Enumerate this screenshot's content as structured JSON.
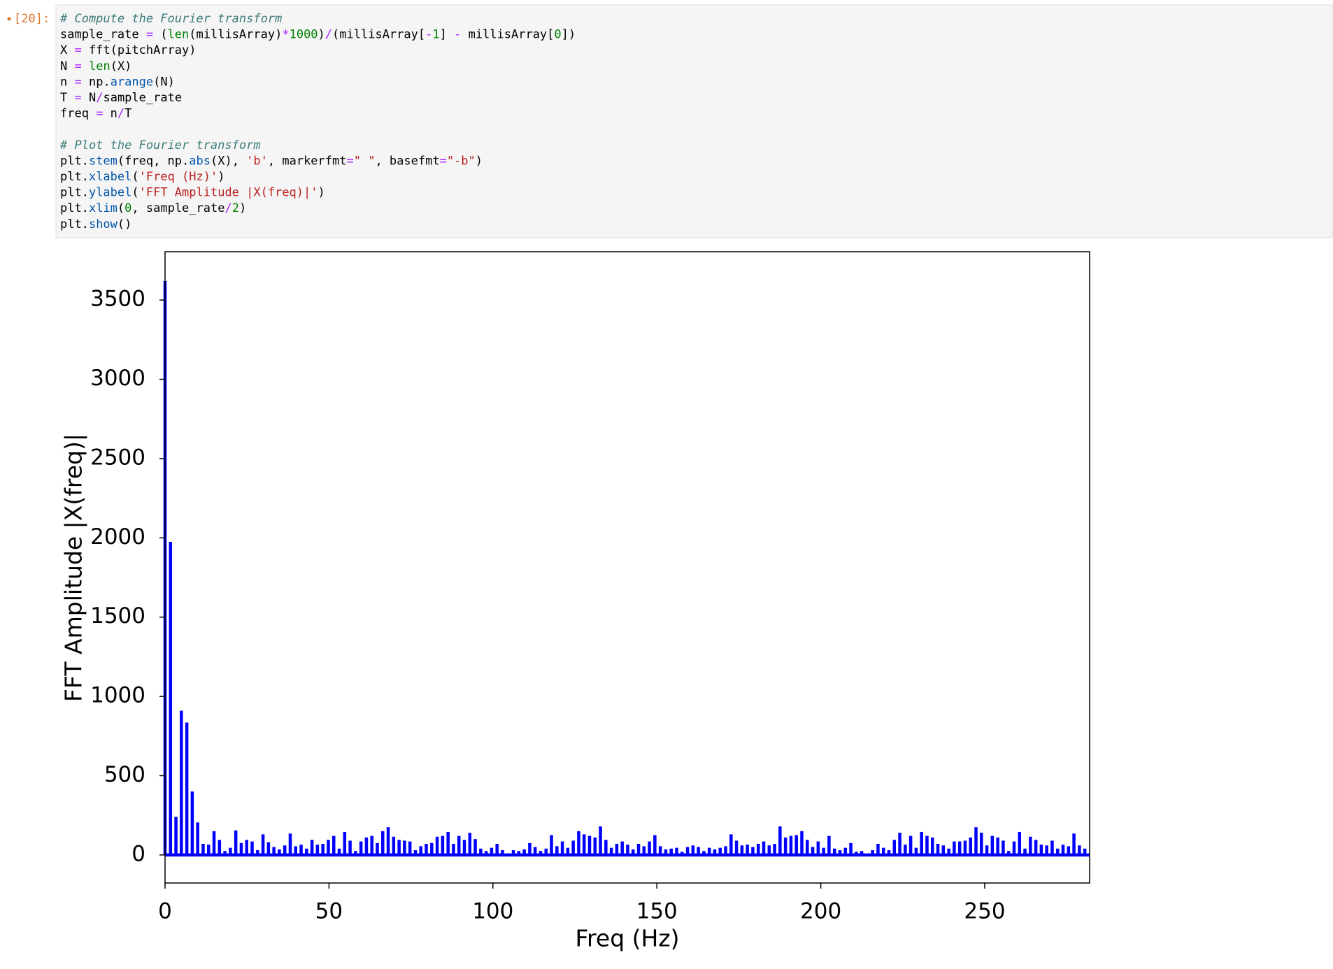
{
  "cell": {
    "prompt": "[20]:",
    "code": [
      [
        [
          "# Compute the Fourier transform",
          "#3d7b7b"
        ]
      ],
      [
        [
          "sample_rate ",
          "#000000"
        ],
        [
          "=",
          "#aa22ff"
        ],
        [
          " (",
          "#000000"
        ],
        [
          "len",
          "#008000"
        ],
        [
          "(millisArray)",
          "#000000"
        ],
        [
          "*",
          "#aa22ff"
        ],
        [
          "1000",
          "#008000"
        ],
        [
          ")",
          "#000000"
        ],
        [
          "/",
          "#aa22ff"
        ],
        [
          "(millisArray[",
          "#000000"
        ],
        [
          "-",
          "#aa22ff"
        ],
        [
          "1",
          "#008000"
        ],
        [
          "] ",
          "#000000"
        ],
        [
          "-",
          "#aa22ff"
        ],
        [
          " millisArray[",
          "#000000"
        ],
        [
          "0",
          "#008000"
        ],
        [
          "])",
          "#000000"
        ]
      ],
      [
        [
          "X ",
          "#000000"
        ],
        [
          "=",
          "#aa22ff"
        ],
        [
          " fft(pitchArray)",
          "#000000"
        ]
      ],
      [
        [
          "N ",
          "#000000"
        ],
        [
          "=",
          "#aa22ff"
        ],
        [
          " ",
          "#000000"
        ],
        [
          "len",
          "#008000"
        ],
        [
          "(X)",
          "#000000"
        ]
      ],
      [
        [
          "n ",
          "#000000"
        ],
        [
          "=",
          "#aa22ff"
        ],
        [
          " np.",
          "#000000"
        ],
        [
          "arange",
          "#0055aa"
        ],
        [
          "(N)",
          "#000000"
        ]
      ],
      [
        [
          "T ",
          "#000000"
        ],
        [
          "=",
          "#aa22ff"
        ],
        [
          " N",
          "#000000"
        ],
        [
          "/",
          "#aa22ff"
        ],
        [
          "sample_rate",
          "#000000"
        ]
      ],
      [
        [
          "freq ",
          "#000000"
        ],
        [
          "=",
          "#aa22ff"
        ],
        [
          " n",
          "#000000"
        ],
        [
          "/",
          "#aa22ff"
        ],
        [
          "T",
          "#000000"
        ]
      ],
      [],
      [
        [
          "# Plot the Fourier transform",
          "#3d7b7b"
        ]
      ],
      [
        [
          "plt.",
          "#000000"
        ],
        [
          "stem",
          "#0055aa"
        ],
        [
          "(freq, np.",
          "#000000"
        ],
        [
          "abs",
          "#0055aa"
        ],
        [
          "(X), ",
          "#000000"
        ],
        [
          "'b'",
          "#ba2121"
        ],
        [
          ", markerfmt",
          "#000000"
        ],
        [
          "=",
          "#aa22ff"
        ],
        [
          "\" \"",
          "#ba2121"
        ],
        [
          ", basefmt",
          "#000000"
        ],
        [
          "=",
          "#aa22ff"
        ],
        [
          "\"-b\"",
          "#ba2121"
        ],
        [
          ")",
          "#000000"
        ]
      ],
      [
        [
          "plt.",
          "#000000"
        ],
        [
          "xlabel",
          "#0055aa"
        ],
        [
          "(",
          "#000000"
        ],
        [
          "'Freq (Hz)'",
          "#ba2121"
        ],
        [
          ")",
          "#000000"
        ]
      ],
      [
        [
          "plt.",
          "#000000"
        ],
        [
          "ylabel",
          "#0055aa"
        ],
        [
          "(",
          "#000000"
        ],
        [
          "'FFT Amplitude |X(freq)|'",
          "#ba2121"
        ],
        [
          ")",
          "#000000"
        ]
      ],
      [
        [
          "plt.",
          "#000000"
        ],
        [
          "xlim",
          "#0055aa"
        ],
        [
          "(",
          "#000000"
        ],
        [
          "0",
          "#008000"
        ],
        [
          ", sample_rate",
          "#000000"
        ],
        [
          "/",
          "#aa22ff"
        ],
        [
          "2",
          "#008000"
        ],
        [
          ")",
          "#000000"
        ]
      ],
      [
        [
          "plt.",
          "#000000"
        ],
        [
          "show",
          "#0055aa"
        ],
        [
          "()",
          "#000000"
        ]
      ]
    ]
  },
  "chart_data": {
    "type": "stem",
    "x_label": "Freq (Hz)",
    "y_label": "FFT Amplitude |X(freq)|",
    "xlim": [
      0,
      282
    ],
    "ylim": [
      -177,
      3805
    ],
    "xticks": [
      0,
      50,
      100,
      150,
      200,
      250
    ],
    "yticks": [
      0,
      500,
      1000,
      1500,
      2000,
      2500,
      3000,
      3500
    ],
    "baseline_color": "#0000ff",
    "x": [
      0,
      1.66,
      3.32,
      4.98,
      6.64,
      8.3,
      9.96,
      11.62,
      13.28,
      14.94,
      16.6,
      18.26,
      19.92,
      21.58,
      23.24,
      24.9,
      26.56,
      28.22,
      29.88,
      31.54,
      33.2,
      34.86,
      36.52,
      38.18,
      39.84,
      41.5,
      43.16,
      44.82,
      46.48,
      48.14,
      49.8,
      51.46,
      53.12,
      54.78,
      56.44,
      58.1,
      59.76,
      61.42,
      63.08,
      64.74,
      66.4,
      68.06,
      69.72,
      71.38,
      73.04,
      74.7,
      76.36,
      78.02,
      79.68,
      81.34,
      83,
      84.66,
      86.32,
      87.98,
      89.64,
      91.3,
      92.96,
      94.62,
      96.28,
      97.94,
      99.6,
      101.26,
      102.92,
      104.58,
      106.24,
      107.9,
      109.56,
      111.22,
      112.88,
      114.54,
      116.2,
      117.86,
      119.52,
      121.18,
      122.84,
      124.5,
      126.16,
      127.82,
      129.48,
      131.14,
      132.8,
      134.46,
      136.12,
      137.78,
      139.44,
      141.1,
      142.76,
      144.42,
      146.08,
      147.74,
      149.4,
      151.06,
      152.72,
      154.38,
      156.04,
      157.7,
      159.36,
      161.02,
      162.68,
      164.34,
      166,
      167.66,
      169.32,
      170.98,
      172.64,
      174.3,
      175.96,
      177.62,
      179.28,
      180.94,
      182.6,
      184.26,
      185.92,
      187.58,
      189.24,
      190.9,
      192.56,
      194.22,
      195.88,
      197.54,
      199.2,
      200.86,
      202.52,
      204.18,
      205.84,
      207.5,
      209.16,
      210.82,
      212.48,
      214.14,
      215.8,
      217.46,
      219.12,
      220.78,
      222.44,
      224.1,
      225.76,
      227.42,
      229.08,
      230.74,
      232.4,
      234.06,
      235.72,
      237.38,
      239.04,
      240.7,
      242.36,
      244.02,
      245.68,
      247.34,
      249,
      250.66,
      252.32,
      253.98,
      255.64,
      257.3,
      258.96,
      260.62,
      262.28,
      263.94,
      265.6,
      267.26,
      268.92,
      270.58,
      272.24,
      273.9,
      275.56,
      277.22,
      278.88,
      280.54
    ],
    "series": [
      {
        "color": "#0000ff",
        "values": [
          3620,
          1975,
          240,
          910,
          835,
          400,
          205,
          70,
          65,
          150,
          95,
          25,
          45,
          155,
          75,
          95,
          85,
          30,
          130,
          80,
          50,
          35,
          60,
          135,
          55,
          65,
          40,
          95,
          65,
          70,
          95,
          120,
          40,
          145,
          90,
          25,
          85,
          110,
          120,
          75,
          150,
          175,
          115,
          95,
          90,
          85,
          30,
          55,
          70,
          75,
          115,
          120,
          145,
          70,
          120,
          95,
          140,
          100,
          40,
          25,
          45,
          70,
          30,
          10,
          30,
          25,
          35,
          75,
          50,
          25,
          40,
          125,
          55,
          85,
          45,
          90,
          150,
          130,
          120,
          110,
          180,
          95,
          45,
          70,
          85,
          65,
          35,
          70,
          55,
          85,
          125,
          55,
          35,
          40,
          45,
          20,
          50,
          60,
          50,
          25,
          45,
          35,
          45,
          55,
          130,
          90,
          60,
          65,
          50,
          70,
          85,
          60,
          70,
          180,
          110,
          120,
          125,
          150,
          95,
          50,
          85,
          45,
          120,
          40,
          30,
          45,
          75,
          20,
          25,
          5,
          30,
          70,
          45,
          30,
          95,
          140,
          65,
          120,
          45,
          145,
          120,
          110,
          70,
          60,
          40,
          85,
          85,
          90,
          110,
          175,
          140,
          60,
          120,
          110,
          90,
          25,
          85,
          145,
          40,
          115,
          95,
          65,
          60,
          90,
          40,
          65,
          55,
          135,
          60,
          40
        ]
      }
    ]
  }
}
